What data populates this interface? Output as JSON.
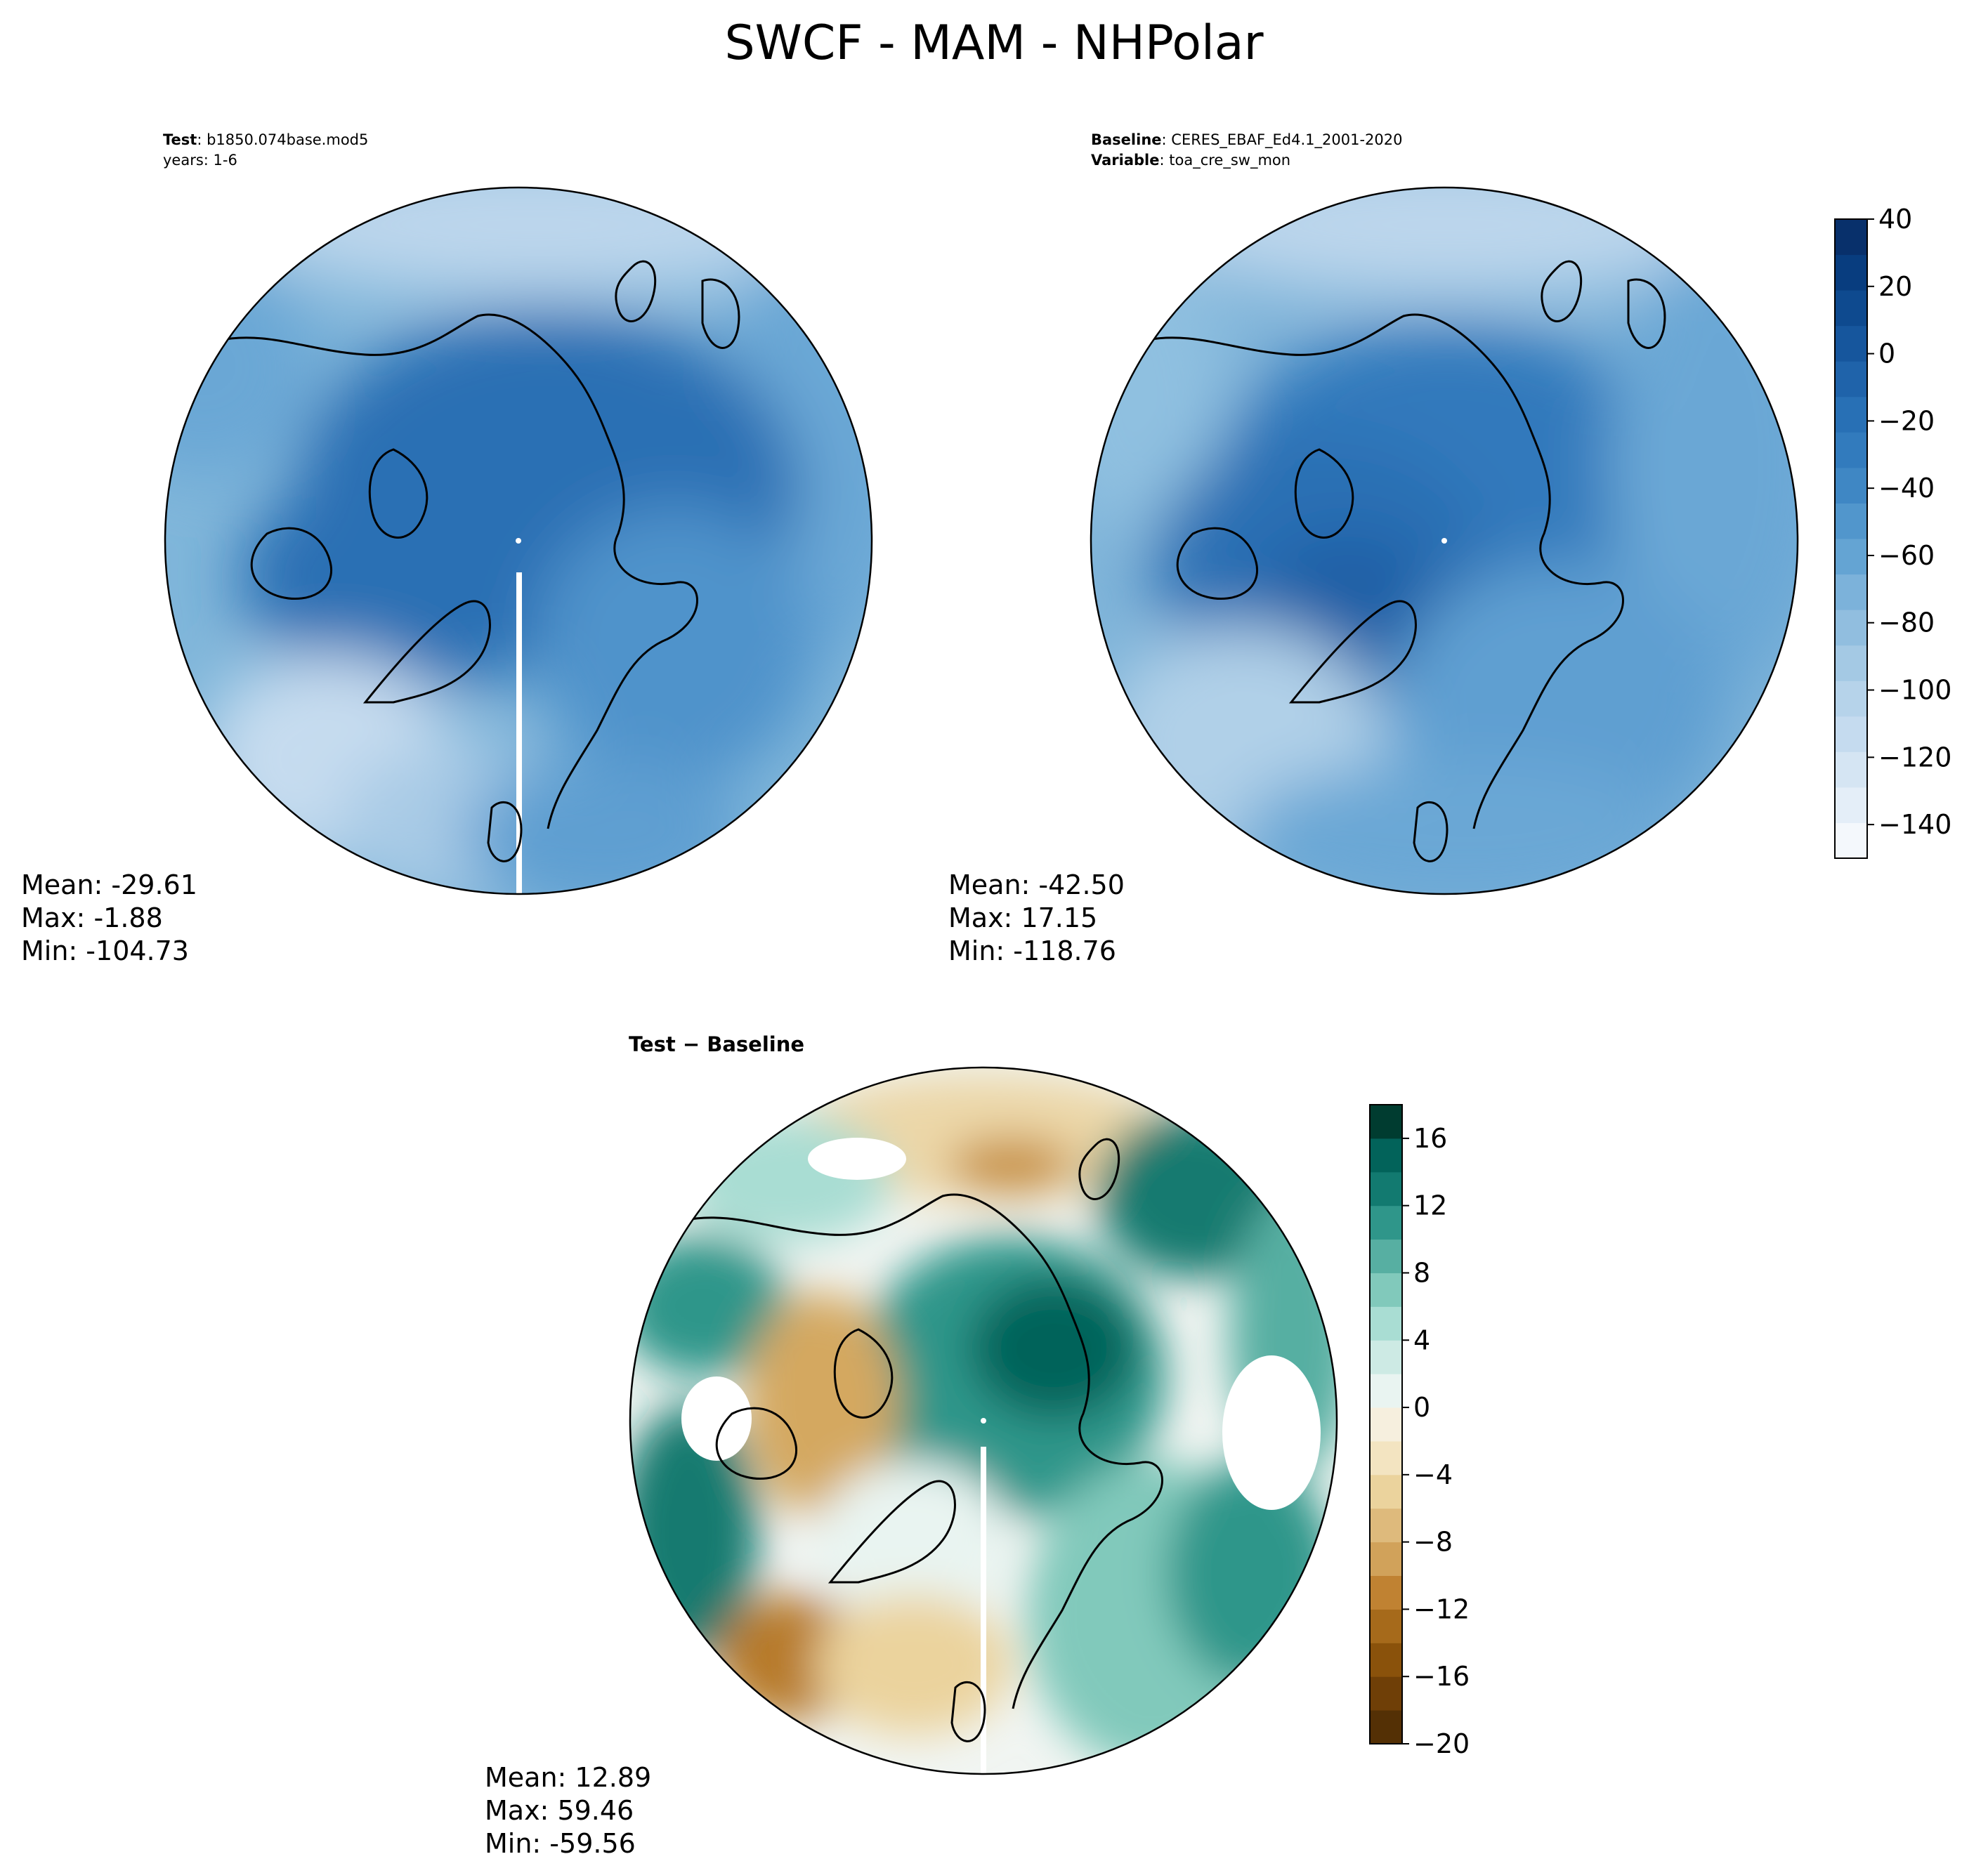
{
  "figure": {
    "title": "SWCF - MAM - NHPolar"
  },
  "colors": {
    "test_baseline_cmap": [
      "#f4f8fc",
      "#e4eef8",
      "#d5e5f3",
      "#c5dbef",
      "#b6d3ea",
      "#a4c9e4",
      "#91bedf",
      "#7cb2da",
      "#64a4d3",
      "#5196cc",
      "#3f87c4",
      "#327bbd",
      "#2870b5",
      "#1f63aa",
      "#16569d",
      "#0e4a8f",
      "#083d7f",
      "#08306b"
    ],
    "diff_cmap": [
      "#543005",
      "#6f3f07",
      "#8a520b",
      "#a66a1b",
      "#c08232",
      "#d1a25a",
      "#deba7c",
      "#ebd39d",
      "#f3e4c1",
      "#f6efde",
      "#e9f4f1",
      "#cdeae4",
      "#a9ddd3",
      "#81c9bb",
      "#57afa2",
      "#2f968a",
      "#127a70",
      "#02635a",
      "#003c30"
    ],
    "coastline": "#000000",
    "frame": "#000000"
  },
  "panels": {
    "test": {
      "label_bold": "Test",
      "label_sep": ":",
      "case": "b1850.074base.mod5",
      "years": "years: 1-6",
      "mean": "Mean: -29.61",
      "max": "Max: -1.88",
      "min": "Min: -104.73"
    },
    "baseline": {
      "label_bold": "Baseline",
      "label_sep": ":",
      "case": "CERES_EBAF_Ed4.1_2001-2020",
      "var_bold": "Variable",
      "variable": "toa_cre_sw_mon",
      "mean": "Mean: -42.50",
      "max": "Max: 17.15",
      "min": "Min: -118.76"
    },
    "diff": {
      "title": "Test − Baseline",
      "mean": "Mean: 12.89",
      "max": "Max: 59.46",
      "min": "Min: -59.56"
    }
  },
  "chart_data": [
    {
      "type": "heatmap",
      "title": "",
      "projection": "north-polar-stereographic",
      "colorbar": {
        "min": -150,
        "max": 40,
        "step": 10,
        "ticks": [
          40,
          20,
          0,
          -20,
          -40,
          -60,
          -80,
          -100,
          -120,
          -140
        ],
        "tick_labels": [
          "40",
          "20",
          "0",
          "−20",
          "−40",
          "−60",
          "−80",
          "−100",
          "−120",
          "−140"
        ]
      },
      "mean": -29.61,
      "max": -1.88,
      "min": -104.73
    },
    {
      "type": "heatmap",
      "title": "",
      "projection": "north-polar-stereographic",
      "colorbar": {
        "min": -150,
        "max": 40,
        "step": 10,
        "ticks": [
          40,
          20,
          0,
          -20,
          -40,
          -60,
          -80,
          -100,
          -120,
          -140
        ],
        "tick_labels": [
          "40",
          "20",
          "0",
          "−20",
          "−40",
          "−60",
          "−80",
          "−100",
          "−120",
          "−140"
        ]
      },
      "mean": -42.5,
      "max": 17.15,
      "min": -118.76
    },
    {
      "type": "heatmap",
      "title": "Test − Baseline",
      "projection": "north-polar-stereographic",
      "colorbar": {
        "min": -20,
        "max": 18,
        "step": 2,
        "ticks": [
          16,
          12,
          8,
          4,
          0,
          -4,
          -8,
          -12,
          -16,
          -20
        ],
        "tick_labels": [
          "16",
          "12",
          "8",
          "4",
          "0",
          "−4",
          "−8",
          "−12",
          "−16",
          "−20"
        ]
      },
      "mean": 12.89,
      "max": 59.46,
      "min": -59.56
    }
  ]
}
